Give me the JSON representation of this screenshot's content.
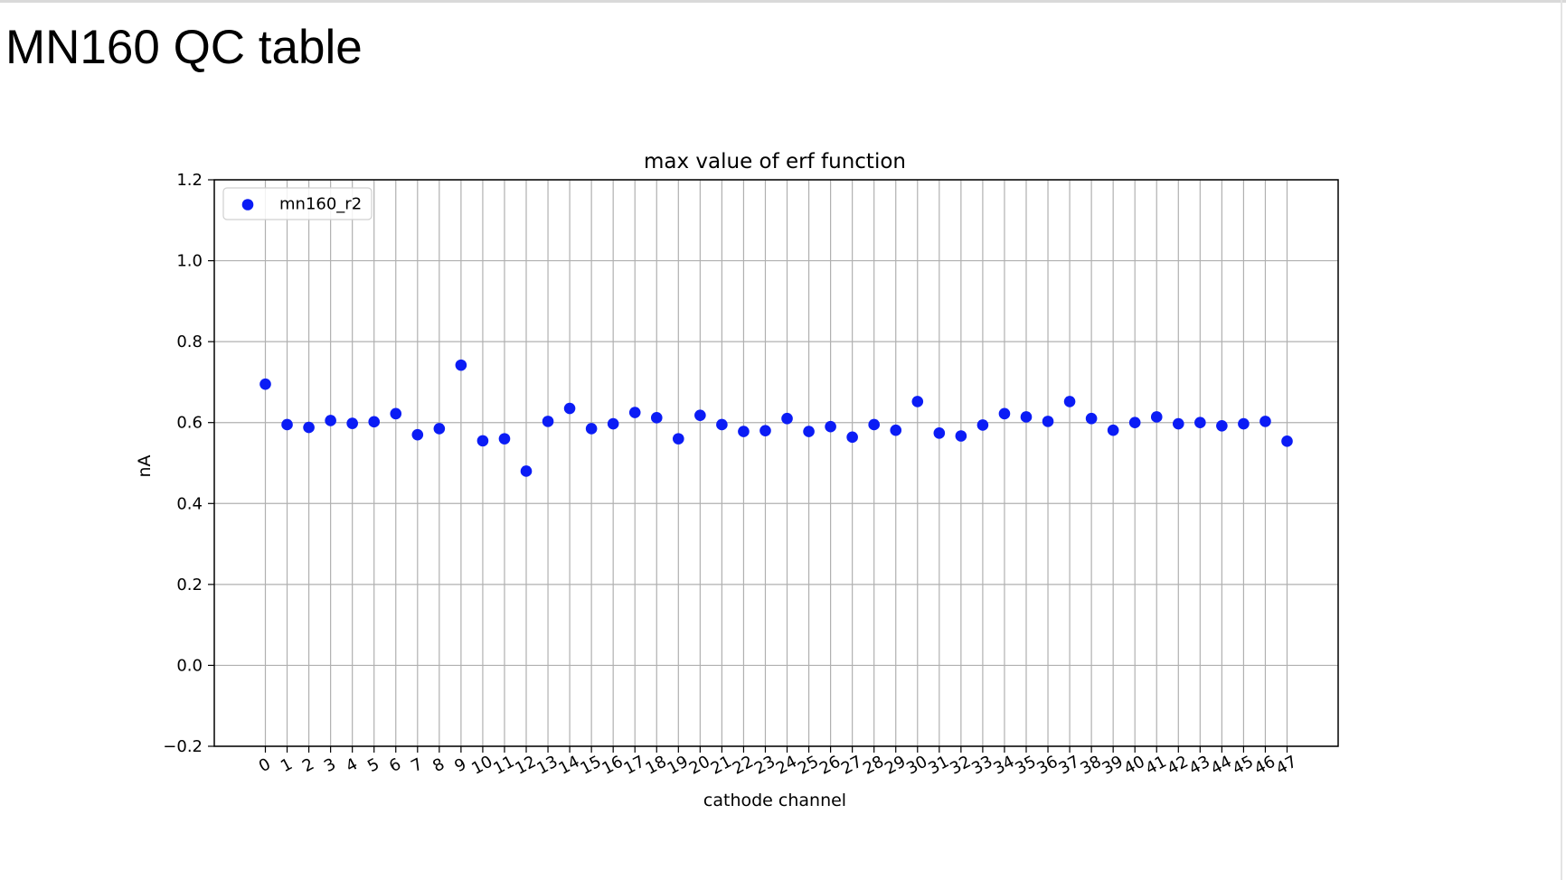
{
  "page": {
    "title": "MN160 QC table"
  },
  "chart_data": {
    "type": "scatter",
    "title": "max value of erf function",
    "xlabel": "cathode channel",
    "ylabel": "nA",
    "xlim": [
      -2.35,
      49.35
    ],
    "ylim": [
      -0.2,
      1.2
    ],
    "yticks": [
      -0.2,
      0.0,
      0.2,
      0.4,
      0.6,
      0.8,
      1.0,
      1.2
    ],
    "ytick_labels": [
      "−0.2",
      "0.0",
      "0.2",
      "0.4",
      "0.6",
      "0.8",
      "1.0",
      "1.2"
    ],
    "xticks": [
      0,
      1,
      2,
      3,
      4,
      5,
      6,
      7,
      8,
      9,
      10,
      11,
      12,
      13,
      14,
      15,
      16,
      17,
      18,
      19,
      20,
      21,
      22,
      23,
      24,
      25,
      26,
      27,
      28,
      29,
      30,
      31,
      32,
      33,
      34,
      35,
      36,
      37,
      38,
      39,
      40,
      41,
      42,
      43,
      44,
      45,
      46,
      47
    ],
    "grid": true,
    "legend_position": "upper-left",
    "series": [
      {
        "name": "mn160_r2",
        "color": "#0b1cf5",
        "x": [
          0,
          1,
          2,
          3,
          4,
          5,
          6,
          7,
          8,
          9,
          10,
          11,
          12,
          13,
          14,
          15,
          16,
          17,
          18,
          19,
          20,
          21,
          22,
          23,
          24,
          25,
          26,
          27,
          28,
          29,
          30,
          31,
          32,
          33,
          34,
          35,
          36,
          37,
          38,
          39,
          40,
          41,
          42,
          43,
          44,
          45,
          46,
          47
        ],
        "y": [
          0.695,
          0.595,
          0.588,
          0.605,
          0.598,
          0.602,
          0.622,
          0.57,
          0.585,
          0.742,
          0.555,
          0.56,
          0.48,
          0.603,
          0.635,
          0.585,
          0.597,
          0.625,
          0.612,
          0.56,
          0.618,
          0.595,
          0.578,
          0.58,
          0.61,
          0.578,
          0.59,
          0.564,
          0.595,
          0.581,
          0.652,
          0.574,
          0.567,
          0.594,
          0.622,
          0.614,
          0.603,
          0.652,
          0.61,
          0.581,
          0.6,
          0.614,
          0.597,
          0.6,
          0.592,
          0.597,
          0.603,
          0.554
        ]
      }
    ]
  }
}
